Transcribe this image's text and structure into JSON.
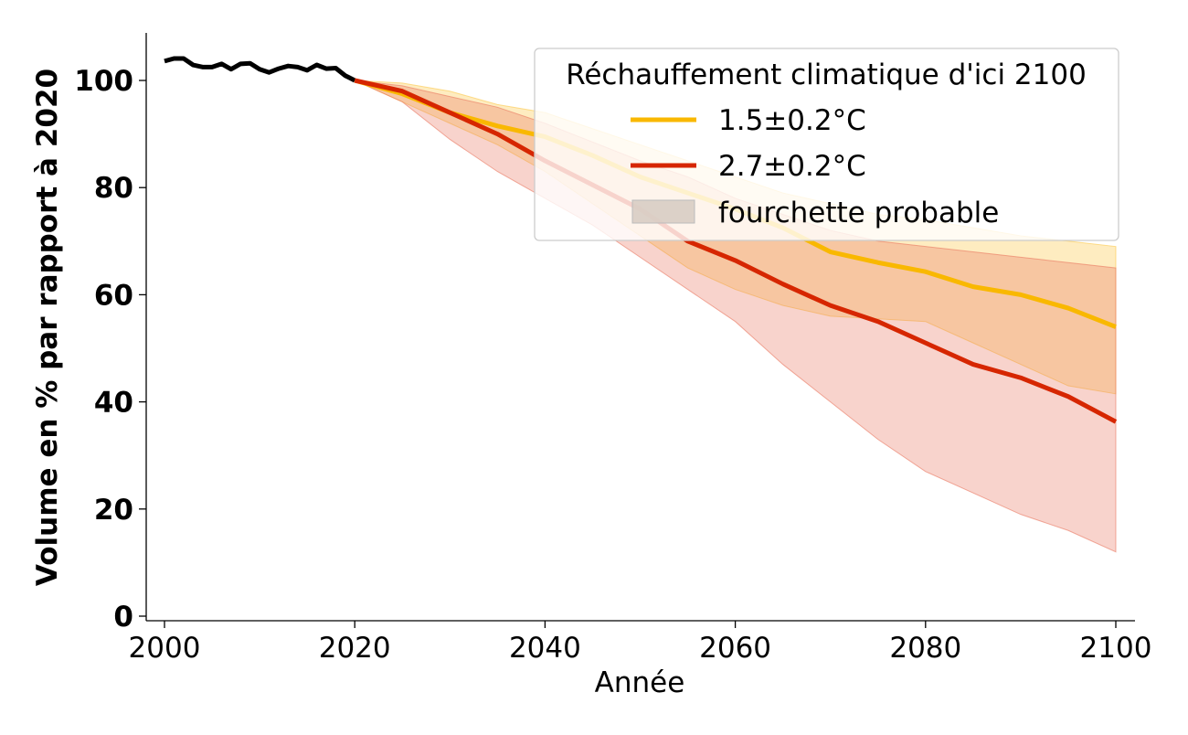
{
  "chart_data": {
    "type": "line",
    "xlabel": "Année",
    "ylabel": "Volume en % par rapport à 2020",
    "xlim": [
      1998,
      2102
    ],
    "ylim": [
      -1,
      109
    ],
    "xticks": [
      2000,
      2020,
      2040,
      2060,
      2080,
      2100
    ],
    "yticks": [
      0,
      20,
      40,
      60,
      80,
      100
    ],
    "grid": false,
    "legend": {
      "title": "Réchauffement climatique d'ici 2100",
      "placement": "top-right",
      "entries": [
        {
          "label": "1.5±0.2°C",
          "kind": "line",
          "color": "#f9b800"
        },
        {
          "label": "2.7±0.2°C",
          "kind": "line",
          "color": "#d62600"
        },
        {
          "label": "fourchette probable",
          "kind": "patch",
          "color": "#d8cdc4"
        }
      ]
    },
    "historical": {
      "color": "#000000",
      "x": [
        2000,
        2001,
        2002,
        2003,
        2004,
        2005,
        2006,
        2007,
        2008,
        2009,
        2010,
        2011,
        2012,
        2013,
        2014,
        2015,
        2016,
        2017,
        2018,
        2019,
        2020
      ],
      "y": [
        103.6,
        104.1,
        104.1,
        102.9,
        102.5,
        102.5,
        103.1,
        102.1,
        103.1,
        103.2,
        102.1,
        101.5,
        102.2,
        102.7,
        102.5,
        101.9,
        102.9,
        102.2,
        102.3,
        100.9,
        100
      ]
    },
    "series": [
      {
        "name": "1.5±0.2°C",
        "color": "#f9b800",
        "band_color": "#fcc84a",
        "x": [
          2020,
          2025,
          2030,
          2035,
          2040,
          2045,
          2050,
          2055,
          2060,
          2065,
          2070,
          2075,
          2080,
          2085,
          2090,
          2095,
          2100
        ],
        "y": [
          100,
          97.5,
          94,
          91.5,
          89.5,
          86,
          82,
          79,
          76,
          72.5,
          68,
          66,
          64.3,
          61.5,
          60,
          57.5,
          54
        ],
        "lower": [
          100,
          96,
          92,
          88,
          83,
          77,
          71,
          65,
          61,
          58,
          56,
          55.5,
          55,
          51,
          47,
          43,
          41.5
        ],
        "upper": [
          100,
          99.5,
          98,
          95.5,
          94,
          91,
          88,
          85,
          82,
          79,
          77,
          75,
          74,
          72.5,
          71,
          70,
          69
        ]
      },
      {
        "name": "2.7±0.2°C",
        "color": "#d62600",
        "band_color": "#e9775f",
        "x": [
          2020,
          2025,
          2030,
          2035,
          2040,
          2045,
          2050,
          2055,
          2060,
          2065,
          2070,
          2075,
          2080,
          2085,
          2090,
          2095,
          2100
        ],
        "y": [
          100,
          98,
          94,
          90,
          85,
          80.5,
          76,
          70,
          66.4,
          62,
          58,
          55,
          51,
          47,
          44.5,
          41,
          36.3
        ],
        "lower": [
          100,
          96,
          89,
          83,
          78,
          73,
          67,
          61,
          55,
          47,
          40,
          33,
          27,
          23,
          19,
          16,
          12
        ],
        "upper": [
          100,
          99,
          97,
          95,
          92,
          88.5,
          85,
          82,
          78,
          75,
          72,
          70,
          69,
          68,
          67,
          66,
          65
        ]
      }
    ]
  }
}
